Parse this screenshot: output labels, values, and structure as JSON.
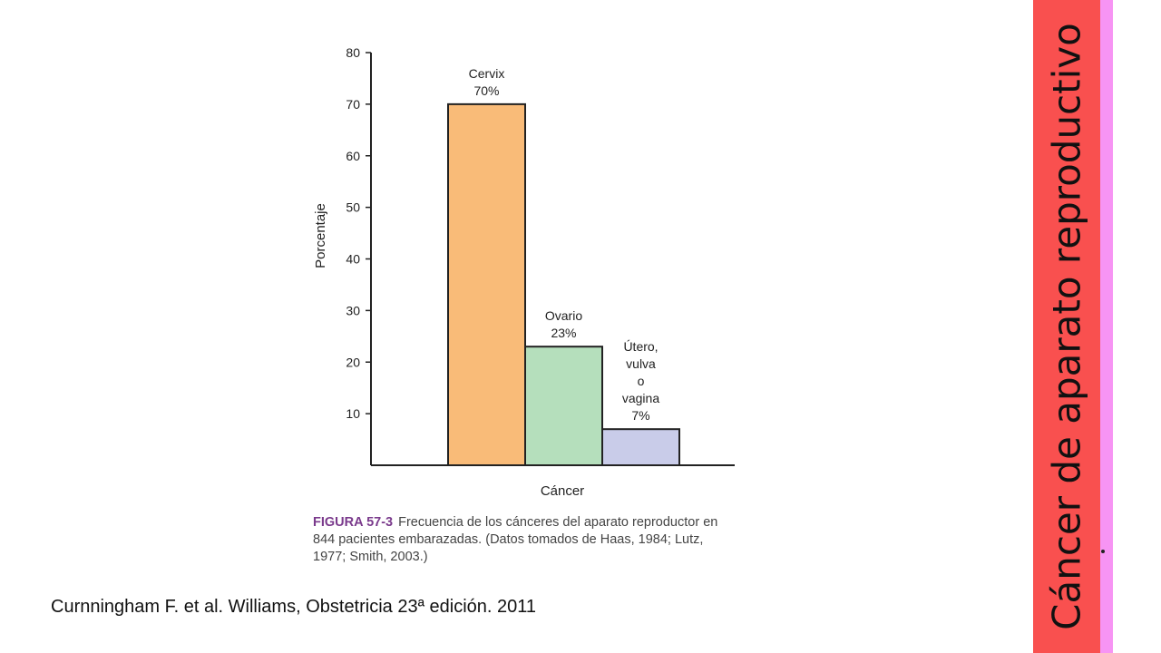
{
  "chart_data": {
    "type": "bar",
    "categories": [
      "Cervix",
      "Ovario",
      "Útero, vulva o vagina"
    ],
    "values": [
      70,
      23,
      7
    ],
    "bar_labels": [
      [
        "Cervix",
        "70%"
      ],
      [
        "Ovario",
        "23%"
      ],
      [
        "Útero,",
        "vulva",
        "o",
        "vagina",
        "7%"
      ]
    ],
    "colors": [
      "#f9bb78",
      "#b5dfbc",
      "#c9cce9"
    ],
    "xlabel": "Cáncer",
    "ylabel": "Porcentaje",
    "ylim": [
      0,
      80
    ],
    "yticks": [
      10,
      20,
      30,
      40,
      50,
      60,
      70,
      80
    ],
    "grid": false
  },
  "caption": {
    "figure": "FIGURA 57-3",
    "text": "Frecuencia de los cánceres del aparato reproductor en 844 pacientes embarazadas. (Datos tomados de Haas, 1984; Lutz, 1977; Smith, 2003.)"
  },
  "source": "Curnningham F. et al. Williams, Obstetricia 23ª edición. 2011",
  "side_title": "Cáncer de aparato reproductivo"
}
